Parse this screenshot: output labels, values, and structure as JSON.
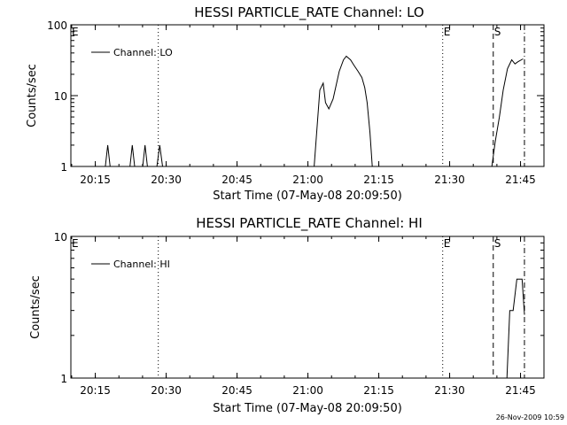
{
  "footer_timestamp": "26-Nov-2009 10:59",
  "chart_data": [
    {
      "type": "line",
      "title": "HESSI PARTICLE_RATE Channel: LO",
      "xlabel": "Start Time (07-May-08 20:09:50)",
      "ylabel": "Counts/sec",
      "yscale": "log",
      "ylim": [
        1,
        100
      ],
      "xlim_minutes": [
        0,
        36.17
      ],
      "x_tick_labels": [
        "20:15",
        "20:30",
        "20:45",
        "21:00",
        "21:15",
        "21:30",
        "21:45"
      ],
      "x_tick_minutes": [
        5.17,
        20.17,
        35.17,
        50.17,
        65.17,
        80.17,
        95.17
      ],
      "y_tick_labels": [
        "1",
        "10",
        "100"
      ],
      "y_ticks": [
        1,
        10,
        100
      ],
      "legend": "Channel: LO",
      "flags": [
        {
          "label": "E",
          "minute": 0,
          "style": "none"
        },
        {
          "label": "",
          "minute": 18.5,
          "style": "dotted"
        },
        {
          "label": "E",
          "minute": 78.7,
          "style": "dotted"
        },
        {
          "label": "S",
          "minute": 89.4,
          "style": "dashed"
        },
        {
          "label": "",
          "minute": 96.0,
          "style": "dashdot"
        }
      ],
      "series": [
        {
          "name": "Channel: LO",
          "points": [
            [
              0,
              1
            ],
            [
              7.3,
              1
            ],
            [
              7.8,
              2
            ],
            [
              8.3,
              1
            ],
            [
              12.5,
              1
            ],
            [
              13.0,
              2
            ],
            [
              13.5,
              1
            ],
            [
              15.2,
              1
            ],
            [
              15.7,
              2
            ],
            [
              16.2,
              1
            ],
            [
              18.2,
              1
            ],
            [
              18.8,
              2
            ],
            [
              19.4,
              1
            ],
            [
              51.5,
              1
            ],
            [
              52.7,
              12
            ],
            [
              53.4,
              15
            ],
            [
              53.9,
              8
            ],
            [
              54.6,
              6.5
            ],
            [
              55.5,
              9
            ],
            [
              56.8,
              22
            ],
            [
              57.7,
              32
            ],
            [
              58.3,
              36
            ],
            [
              59.2,
              32
            ],
            [
              59.9,
              27
            ],
            [
              60.8,
              22
            ],
            [
              61.6,
              18
            ],
            [
              62.2,
              13
            ],
            [
              62.7,
              8
            ],
            [
              63.3,
              3
            ],
            [
              63.8,
              1
            ],
            [
              89.1,
              1
            ],
            [
              89.8,
              2.2
            ],
            [
              90.7,
              5
            ],
            [
              91.5,
              12
            ],
            [
              92.4,
              24
            ],
            [
              93.3,
              32
            ],
            [
              94.0,
              28
            ],
            [
              94.6,
              30
            ],
            [
              95.7,
              33
            ]
          ]
        }
      ]
    },
    {
      "type": "line",
      "title": "HESSI PARTICLE_RATE Channel: HI",
      "xlabel": "Start Time (07-May-08 20:09:50)",
      "ylabel": "Counts/sec",
      "yscale": "log",
      "ylim": [
        1,
        10
      ],
      "x_tick_labels": [
        "20:15",
        "20:30",
        "20:45",
        "21:00",
        "21:15",
        "21:30",
        "21:45"
      ],
      "x_tick_minutes": [
        5.17,
        20.17,
        35.17,
        50.17,
        65.17,
        80.17,
        95.17
      ],
      "y_tick_labels": [
        "1",
        "10"
      ],
      "y_ticks": [
        1,
        10
      ],
      "legend": "Channel: HI",
      "flags": [
        {
          "label": "E",
          "minute": 0,
          "style": "none"
        },
        {
          "label": "",
          "minute": 18.5,
          "style": "dotted"
        },
        {
          "label": "E",
          "minute": 78.7,
          "style": "dotted"
        },
        {
          "label": "S",
          "minute": 89.4,
          "style": "dashed"
        },
        {
          "label": "",
          "minute": 96.0,
          "style": "dashdot"
        }
      ],
      "series": [
        {
          "name": "Channel: HI",
          "points": [
            [
              92.3,
              1
            ],
            [
              92.9,
              3
            ],
            [
              93.6,
              3
            ],
            [
              94.4,
              5
            ],
            [
              95.5,
              5
            ],
            [
              96.0,
              2.8
            ]
          ]
        }
      ]
    }
  ]
}
